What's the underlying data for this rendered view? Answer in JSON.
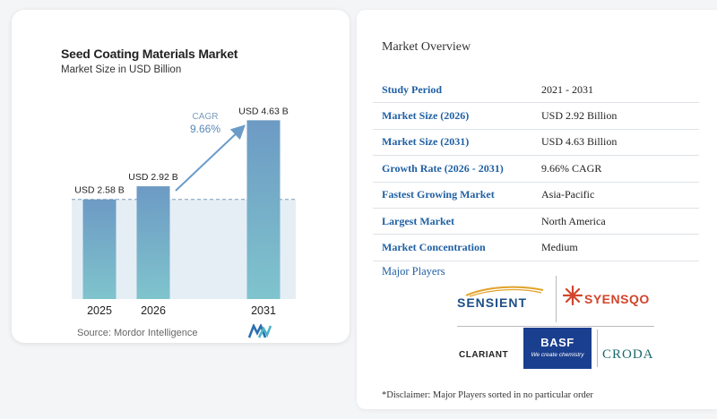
{
  "chart_data": {
    "type": "bar",
    "title": "Seed Coating Materials Market",
    "subtitle": "Market Size in USD Billion",
    "categories": [
      "2025",
      "2026",
      "2031"
    ],
    "values": [
      2.58,
      2.92,
      4.63
    ],
    "data_labels": [
      "USD 2.58 B",
      "USD 2.92 B",
      "USD 4.63 B"
    ],
    "cagr_label": "CAGR",
    "cagr_value": "9.66%",
    "ylim": [
      0,
      4.8
    ],
    "grid": false,
    "colors": {
      "bar_top": "#6d9ac4",
      "bar_bottom": "#7fc4cd",
      "arrow": "#6b9bc8",
      "shade": "#e6eef5"
    }
  },
  "source": "Source: Mordor Intelligence",
  "overview": {
    "title": "Market Overview",
    "rows": [
      {
        "label": "Study Period",
        "value": "2021 - 2031"
      },
      {
        "label": "Market Size (2026)",
        "value": "USD 2.92 Billion"
      },
      {
        "label": "Market Size (2031)",
        "value": "USD 4.63 Billion"
      },
      {
        "label": "Growth Rate (2026 - 2031)",
        "value": "9.66% CAGR"
      },
      {
        "label": "Fastest Growing Market",
        "value": "Asia-Pacific"
      },
      {
        "label": "Largest Market",
        "value": "North America"
      },
      {
        "label": "Market Concentration",
        "value": "Medium"
      }
    ]
  },
  "players": {
    "title": "Major Players",
    "logos": {
      "sensient": "SENSIENT",
      "svensqo": "SYENSQO",
      "clariant": "CLARIANT",
      "basf": "BASF",
      "basf_tagline": "We create chemistry",
      "croda": "CRODA"
    }
  },
  "disclaimer": "*Disclaimer: Major Players sorted in no particular order"
}
